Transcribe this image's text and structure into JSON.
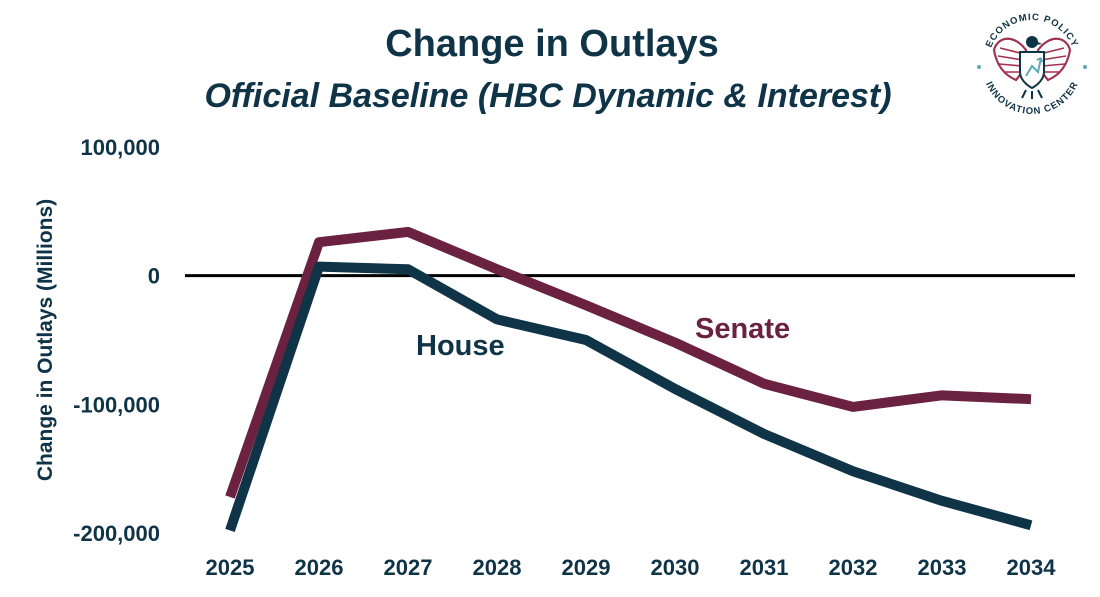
{
  "chart_data": {
    "type": "line",
    "title": "Change in Outlays",
    "subtitle": "Official Baseline (HBC Dynamic & Interest)",
    "xlabel": "",
    "ylabel": "Change in Outlays (Millions)",
    "x": [
      "2025",
      "2026",
      "2027",
      "2028",
      "2029",
      "2030",
      "2031",
      "2032",
      "2033",
      "2034"
    ],
    "ylim": [
      -200000,
      100000
    ],
    "yticks": [
      100000,
      0,
      -100000,
      -200000
    ],
    "ytick_labels": [
      "100,000",
      "0",
      "-100,000",
      "-200,000"
    ],
    "grid": false,
    "legend": "none",
    "series": [
      {
        "name": "House",
        "color": "#0f3347",
        "values": [
          -198000,
          7000,
          5000,
          -34000,
          -50000,
          -88000,
          -123000,
          -152000,
          -175000,
          -194000
        ]
      },
      {
        "name": "Senate",
        "color": "#6b2140",
        "values": [
          -172000,
          26000,
          34000,
          5000,
          -23000,
          -52000,
          -84000,
          -102000,
          -93000,
          -96000
        ]
      }
    ],
    "zero_line_color": "#000000"
  },
  "logo": {
    "top_text": "ECONOMIC POLICY",
    "bottom_text": "INNOVATION CENTER",
    "colors": {
      "red": "#a3324e",
      "navy": "#0f3347",
      "teal": "#5fa8b5"
    },
    "icon": "eagle-seal-icon"
  },
  "text_color": "#0f3347"
}
